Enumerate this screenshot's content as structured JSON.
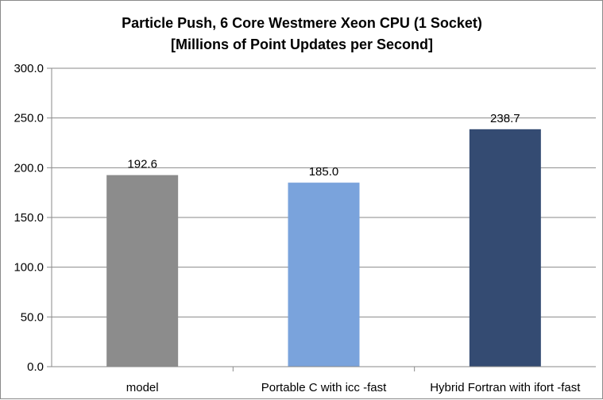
{
  "chart_data": {
    "type": "bar",
    "title": "Particle Push, 6 Core Westmere Xeon CPU (1 Socket)",
    "subtitle": "[Millions of Point Updates per Second]",
    "xlabel": "",
    "ylabel": "",
    "categories": [
      "model",
      "Portable C with icc -fast",
      "Hybrid Fortran with ifort -fast"
    ],
    "values": [
      192.6,
      185.0,
      238.7
    ],
    "value_labels": [
      "192.6",
      "185.0",
      "238.7"
    ],
    "bar_colors": [
      "#8c8c8c",
      "#7aa3dc",
      "#344b72"
    ],
    "ylim": [
      0,
      300
    ],
    "yticks": [
      0,
      50,
      100,
      150,
      200,
      250,
      300
    ],
    "ytick_labels": [
      "0.0",
      "50.0",
      "100.0",
      "150.0",
      "200.0",
      "250.0",
      "300.0"
    ],
    "grid": true,
    "legend": "none"
  }
}
